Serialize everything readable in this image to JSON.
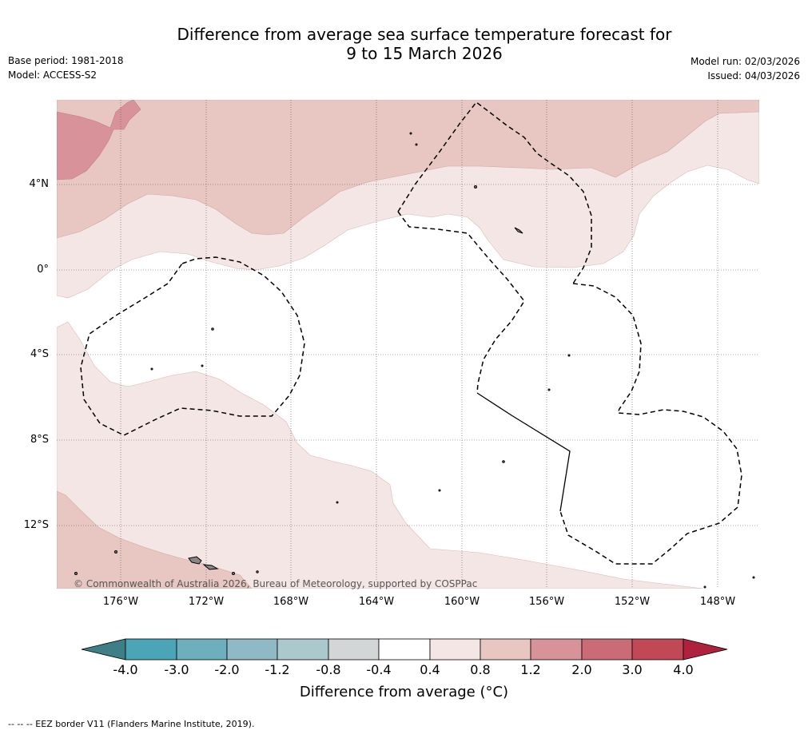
{
  "title": {
    "line1": "Difference from average sea surface temperature forecast for",
    "line2": "9 to 15 March 2026"
  },
  "meta_left": {
    "base_period": "Base period: 1981-2018",
    "model": "Model: ACCESS-S2"
  },
  "meta_right": {
    "model_run": "Model run: 02/03/2026",
    "issued": "Issued: 04/03/2026"
  },
  "map": {
    "latitudes": [
      "4°N",
      "0°",
      "4°S",
      "8°S",
      "12°S"
    ],
    "longitudes": [
      "176°W",
      "172°W",
      "168°W",
      "164°W",
      "160°W",
      "156°W",
      "152°W",
      "148°W"
    ],
    "copyright": "© Commonwealth of Australia 2026, Bureau of Meteorology, supported by COSPPac"
  },
  "colorbar": {
    "ticks": [
      "-4.0",
      "-3.0",
      "-2.0",
      "-1.2",
      "-0.8",
      "-0.4",
      "0.4",
      "0.8",
      "1.2",
      "2.0",
      "3.0",
      "4.0"
    ],
    "colors": [
      "#3e7f87",
      "#4aa6b7",
      "#6eafbd",
      "#8fb9c4",
      "#abc9cd",
      "#d3d6d7",
      "#ffffff",
      "#f4e6e4",
      "#e8c7c2",
      "#d7929a",
      "#cb6b75",
      "#c04857",
      "#b0213d"
    ],
    "title": "Difference from average (°C)"
  },
  "footer": "--  --  -- EEZ border V11 (Flanders Marine Institute, 2019)."
}
